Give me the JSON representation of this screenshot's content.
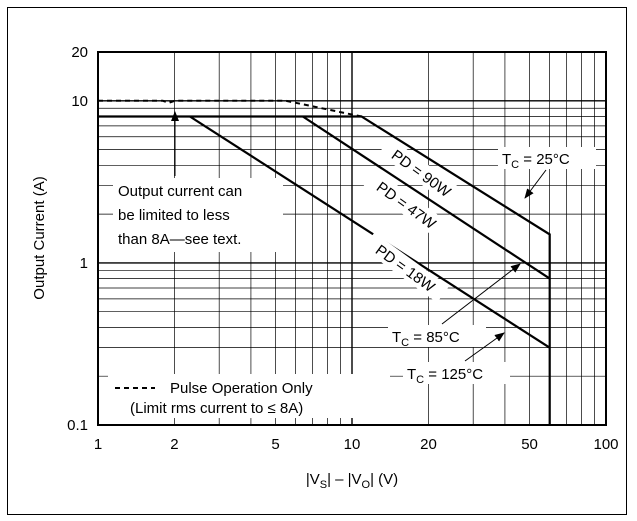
{
  "chart_data": {
    "type": "line",
    "title": "",
    "xlabel_parts": [
      "|V",
      "S",
      "| – |V",
      "O",
      "| (V)"
    ],
    "ylabel": "Output Current (A)",
    "xscale": "log",
    "yscale": "log",
    "xlim": [
      1,
      100
    ],
    "ylim": [
      0.1,
      20
    ],
    "grid": true,
    "x_ticks": [
      {
        "value": 1,
        "label": "1"
      },
      {
        "value": 2,
        "label": "2"
      },
      {
        "value": 5,
        "label": "5"
      },
      {
        "value": 10,
        "label": "10"
      },
      {
        "value": 20,
        "label": "20"
      },
      {
        "value": 50,
        "label": "50"
      },
      {
        "value": 100,
        "label": "100"
      }
    ],
    "y_ticks": [
      {
        "value": 0.1,
        "label": "0.1"
      },
      {
        "value": 1,
        "label": "1"
      },
      {
        "value": 10,
        "label": "10"
      },
      {
        "value": 20,
        "label": "20"
      }
    ],
    "series": [
      {
        "name": "PD = 90W",
        "style": "solid",
        "x": [
          1,
          10.9,
          60,
          60
        ],
        "y": [
          8,
          8,
          1.5,
          0.1
        ]
      },
      {
        "name": "PD = 47W",
        "style": "solid",
        "x": [
          6.4,
          60
        ],
        "y": [
          8,
          0.8
        ]
      },
      {
        "name": "PD = 18W",
        "style": "solid",
        "x": [
          2.3,
          60
        ],
        "y": [
          8,
          0.3
        ]
      },
      {
        "name": "Pulse Operation Only",
        "style": "dashed",
        "x": [
          1,
          1.8,
          1.9,
          2.0,
          5.5,
          10.9
        ],
        "y": [
          10,
          10,
          9.7,
          10,
          10,
          8
        ]
      }
    ],
    "annotations": {
      "limit_note": [
        "Output current can",
        "be limited to less",
        "than 8A—see text."
      ],
      "legend_line1": "Pulse Operation Only",
      "legend_line2": "(Limit rms current to ≤ 8A)",
      "tc_25": {
        "main": "T",
        "sub": "C",
        "rest": " = 25°C"
      },
      "tc_85": {
        "main": "T",
        "sub": "C",
        "rest": " = 85°C"
      },
      "tc_125": {
        "main": "T",
        "sub": "C",
        "rest": " = 125°C"
      }
    }
  }
}
